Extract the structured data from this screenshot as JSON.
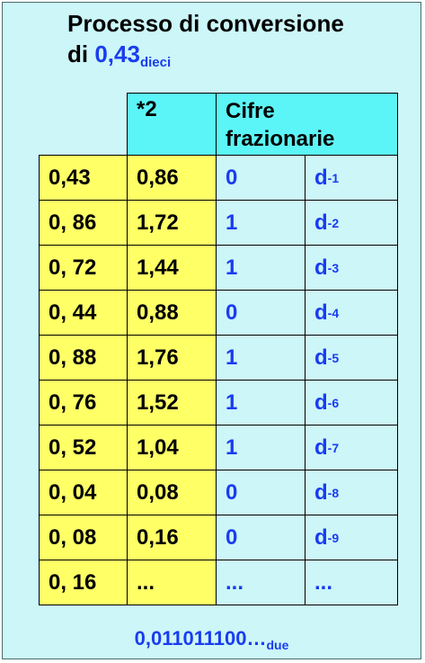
{
  "title": {
    "line1": "Processo di conversione",
    "prefix": "di",
    "value": "0,43",
    "base": "dieci"
  },
  "table": {
    "headers": {
      "multiplier": "*2",
      "digits_line1": "Cifre",
      "digits_line2": "frazionarie"
    },
    "rows": [
      {
        "value": "0,43",
        "product": "0,86",
        "digit": "0",
        "d_sub": "-1"
      },
      {
        "value": "0, 86",
        "product": "1,72",
        "digit": "1",
        "d_sub": "-2"
      },
      {
        "value": "0, 72",
        "product": "1,44",
        "digit": "1",
        "d_sub": "-3"
      },
      {
        "value": "0, 44",
        "product": "0,88",
        "digit": "0",
        "d_sub": "-4"
      },
      {
        "value": "0, 88",
        "product": "1,76",
        "digit": "1",
        "d_sub": "-5"
      },
      {
        "value": "0, 76",
        "product": "1,52",
        "digit": "1",
        "d_sub": "-6"
      },
      {
        "value": "0, 52",
        "product": "1,04",
        "digit": "1",
        "d_sub": "-7"
      },
      {
        "value": "0, 04",
        "product": "0,08",
        "digit": "0",
        "d_sub": "-8"
      },
      {
        "value": "0, 08",
        "product": "0,16",
        "digit": "0",
        "d_sub": "-9"
      },
      {
        "value": "0, 16",
        "product": "...",
        "digit": "...",
        "d_sub": ""
      }
    ],
    "d_label": "d",
    "last_row_d": "..."
  },
  "result": {
    "value": "0,011011100…",
    "base": "due"
  },
  "colors": {
    "panel_bg": "#ccf6f8",
    "yellow": "#ffff66",
    "cyan": "#5cf5f7",
    "blue_text": "#1a3cf0"
  }
}
